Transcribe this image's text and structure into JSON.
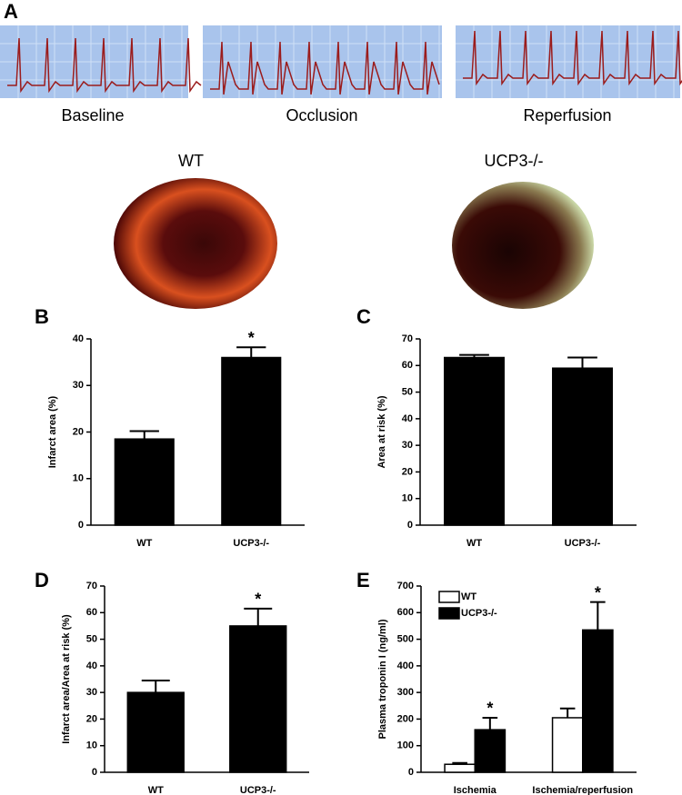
{
  "panel_a": {
    "label": "A",
    "traces": [
      "Baseline",
      "Occlusion",
      "Reperfusion"
    ],
    "hearts": [
      "WT",
      "UCP3-/-"
    ]
  },
  "chart_data": [
    {
      "type": "bar",
      "panel": "B",
      "y_label": "Infarct area (%)",
      "categories": [
        "WT",
        "UCP3-/-"
      ],
      "values": [
        18.5,
        36
      ],
      "errors": [
        1.7,
        2.2
      ],
      "significance": [
        null,
        "*"
      ],
      "color": "#000000",
      "ylim": [
        0,
        40
      ],
      "yticks": [
        0,
        10,
        20,
        30,
        40
      ]
    },
    {
      "type": "bar",
      "panel": "C",
      "y_label": "Area at risk (%)",
      "categories": [
        "WT",
        "UCP3-/-"
      ],
      "values": [
        63,
        59
      ],
      "errors": [
        1,
        4
      ],
      "color": "#000000",
      "ylim": [
        0,
        70
      ],
      "yticks": [
        0,
        10,
        20,
        30,
        40,
        50,
        60,
        70
      ]
    },
    {
      "type": "bar",
      "panel": "D",
      "y_label": "Infarct area/Area at risk (%)",
      "categories": [
        "WT",
        "UCP3-/-"
      ],
      "values": [
        30,
        55
      ],
      "errors": [
        4.5,
        6.5
      ],
      "significance": [
        null,
        "*"
      ],
      "color": "#000000",
      "ylim": [
        0,
        70
      ],
      "yticks": [
        0,
        10,
        20,
        30,
        40,
        50,
        60,
        70
      ]
    },
    {
      "type": "bar",
      "panel": "E",
      "y_label": "Plasma troponin I (ng/ml)",
      "categories": [
        "Ischemia",
        "Ischemia/reperfusion"
      ],
      "series": [
        {
          "name": "WT",
          "color": "#ffffff",
          "values": [
            30,
            205
          ],
          "errors": [
            5,
            35
          ],
          "significance": [
            null,
            null
          ]
        },
        {
          "name": "UCP3-/-",
          "color": "#000000",
          "values": [
            160,
            535
          ],
          "errors": [
            45,
            105
          ],
          "significance": [
            "*",
            "*"
          ]
        }
      ],
      "legend": "top-left",
      "ylim": [
        0,
        700
      ],
      "yticks": [
        0,
        100,
        200,
        300,
        400,
        500,
        600,
        700
      ]
    }
  ]
}
